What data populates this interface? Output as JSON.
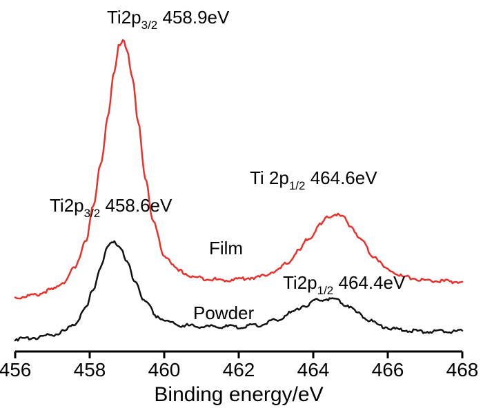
{
  "chart_data": {
    "type": "line",
    "title": "",
    "xlabel": "Binding energy/eV",
    "ylabel": "",
    "xlim": [
      456,
      468
    ],
    "ylim": [
      0,
      1
    ],
    "x_ticks": [
      456,
      458,
      460,
      462,
      464,
      466,
      468
    ],
    "x_tick_labels": [
      "456",
      "458",
      "460",
      "462",
      "464",
      "466",
      "468"
    ],
    "grid": false,
    "series": [
      {
        "name": "Film",
        "color": "#e8312a",
        "x": [
          456.0,
          456.5,
          457.0,
          457.3,
          457.6,
          457.9,
          458.1,
          458.3,
          458.5,
          458.65,
          458.8,
          458.9,
          459.0,
          459.15,
          459.3,
          459.5,
          459.7,
          460.0,
          460.4,
          460.8,
          461.2,
          461.6,
          462.0,
          462.5,
          463.0,
          463.3,
          463.6,
          463.9,
          464.2,
          464.4,
          464.6,
          464.8,
          465.0,
          465.3,
          465.6,
          466.0,
          466.5,
          467.0,
          467.5,
          468.0
        ],
        "y": [
          0.134,
          0.142,
          0.16,
          0.185,
          0.23,
          0.32,
          0.43,
          0.57,
          0.73,
          0.86,
          0.955,
          0.97,
          0.94,
          0.84,
          0.7,
          0.52,
          0.38,
          0.27,
          0.22,
          0.2,
          0.195,
          0.19,
          0.195,
          0.2,
          0.22,
          0.245,
          0.285,
          0.33,
          0.37,
          0.395,
          0.405,
          0.395,
          0.365,
          0.32,
          0.27,
          0.225,
          0.2,
          0.19,
          0.187,
          0.185
        ]
      },
      {
        "name": "Powder",
        "color": "#111111",
        "x": [
          456.0,
          456.5,
          457.0,
          457.3,
          457.6,
          457.9,
          458.1,
          458.3,
          458.5,
          458.65,
          458.8,
          459.0,
          459.2,
          459.5,
          459.8,
          460.1,
          460.5,
          461.0,
          461.5,
          462.0,
          462.5,
          463.0,
          463.4,
          463.8,
          464.1,
          464.4,
          464.6,
          464.9,
          465.2,
          465.5,
          465.9,
          466.3,
          466.8,
          467.3,
          468.0
        ],
        "y": [
          0.0,
          0.005,
          0.015,
          0.025,
          0.05,
          0.1,
          0.165,
          0.235,
          0.3,
          0.318,
          0.3,
          0.25,
          0.19,
          0.12,
          0.075,
          0.055,
          0.045,
          0.04,
          0.04,
          0.04,
          0.045,
          0.06,
          0.085,
          0.11,
          0.125,
          0.13,
          0.128,
          0.11,
          0.085,
          0.06,
          0.04,
          0.03,
          0.025,
          0.025,
          0.025
        ]
      }
    ],
    "annotations": [
      {
        "main": "Ti2p",
        "sub": "3/2",
        "rest": " 458.9eV"
      },
      {
        "main": "Ti 2p",
        "sub": "1/2",
        "rest": " 464.6eV"
      },
      {
        "main": "Ti2p",
        "sub": "3/2",
        "rest": " 458.6eV"
      },
      {
        "main": "Ti2p",
        "sub": "1/2",
        "rest": " 464.4eV"
      }
    ],
    "curve_labels": [
      "Film",
      "Powder"
    ]
  }
}
